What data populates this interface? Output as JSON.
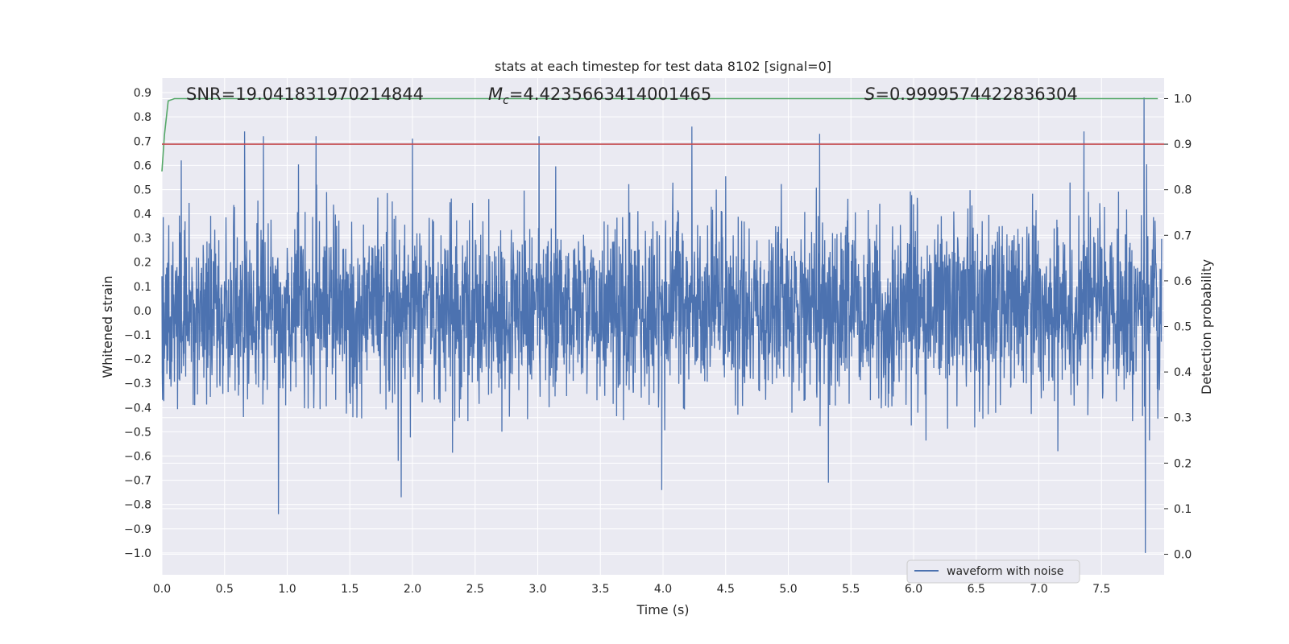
{
  "chart_data": {
    "type": "line",
    "title": "stats at each timestep for test data 8102 [signal=0]",
    "xlabel": "Time (s)",
    "ylabel": "Whitened strain",
    "y2label": "Detection probability",
    "xlim": [
      0.0,
      8.0
    ],
    "ylim": [
      -1.09,
      0.96
    ],
    "y2lim": [
      -0.045,
      1.045
    ],
    "x_ticks": [
      "0.0",
      "0.5",
      "1.0",
      "1.5",
      "2.0",
      "2.5",
      "3.0",
      "3.5",
      "4.0",
      "4.5",
      "5.0",
      "5.5",
      "6.0",
      "6.5",
      "7.0",
      "7.5"
    ],
    "y_ticks": [
      "0.9",
      "0.8",
      "0.7",
      "0.6",
      "0.5",
      "0.4",
      "0.3",
      "0.2",
      "0.1",
      "0.0",
      "−0.1",
      "−0.2",
      "−0.3",
      "−0.4",
      "−0.5",
      "−0.6",
      "−0.7",
      "−0.8",
      "−0.9",
      "−1.0"
    ],
    "y2_ticks": [
      "1.0",
      "0.9",
      "0.8",
      "0.7",
      "0.6",
      "0.5",
      "0.4",
      "0.3",
      "0.2",
      "0.1",
      "0.0"
    ],
    "grid": true,
    "legend_position": "lower right",
    "annotations": {
      "snr": "SNR=19.041831970214844",
      "mc_symbol": "M",
      "mc_sub": "c",
      "mc_value": "=4.4235663414001465",
      "s_symbol": "S",
      "s_value": "=0.9999574422836304"
    },
    "series": [
      {
        "name": "waveform with noise",
        "axis": "left",
        "color": "#4c72b0",
        "description": "dense noisy whitened strain, roughly within ±0.5 with spikes",
        "envelope_typical": [
          -0.45,
          0.47
        ],
        "peaks": [
          {
            "x": 0.66,
            "y": 0.74
          },
          {
            "x": 0.81,
            "y": 0.72
          },
          {
            "x": 0.93,
            "y": -0.84
          },
          {
            "x": 1.23,
            "y": 0.72
          },
          {
            "x": 1.91,
            "y": -0.77
          },
          {
            "x": 2.0,
            "y": 0.71
          },
          {
            "x": 3.01,
            "y": 0.72
          },
          {
            "x": 3.99,
            "y": -0.74
          },
          {
            "x": 4.23,
            "y": 0.76
          },
          {
            "x": 5.25,
            "y": 0.73
          },
          {
            "x": 5.32,
            "y": -0.71
          },
          {
            "x": 7.36,
            "y": 0.74
          },
          {
            "x": 7.84,
            "y": 0.88
          },
          {
            "x": 7.85,
            "y": -1.0
          }
        ]
      },
      {
        "name": "",
        "axis": "right",
        "color": "#55a868",
        "x": [
          0.0,
          0.02,
          0.05,
          0.1,
          0.2,
          7.95
        ],
        "y": [
          0.84,
          0.92,
          0.995,
          1.0,
          1.0,
          1.0
        ]
      },
      {
        "name": "",
        "axis": "right",
        "color": "#c44e52",
        "x": [
          0.0,
          8.0
        ],
        "y": [
          0.9,
          0.9
        ]
      }
    ]
  }
}
